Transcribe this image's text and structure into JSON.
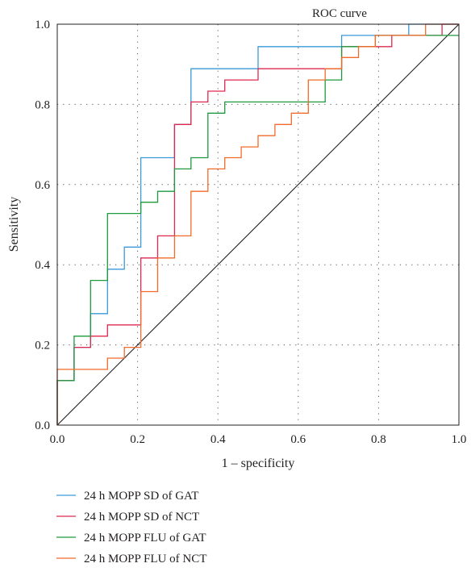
{
  "chart_data": {
    "type": "line",
    "title": "ROC curve",
    "xlabel": "1 – specificity",
    "ylabel": "Sensitivity",
    "xlim": [
      0,
      1
    ],
    "ylim": [
      0,
      1
    ],
    "x_ticks": [
      "0.0",
      "0.2",
      "0.4",
      "0.6",
      "0.8",
      "1.0"
    ],
    "y_ticks": [
      "0.0",
      "0.2",
      "0.4",
      "0.6",
      "0.8",
      "1.0"
    ],
    "grid": true,
    "legend_position": "bottom",
    "reference_line": {
      "x": [
        0,
        1
      ],
      "y": [
        0,
        1
      ],
      "color": "#231f20"
    },
    "series": [
      {
        "name": "24 h MOPP SD of GAT",
        "color": "#3a9ad9",
        "x": [
          0,
          0,
          0.042,
          0.042,
          0.083,
          0.083,
          0.125,
          0.125,
          0.167,
          0.167,
          0.208,
          0.208,
          0.292,
          0.292,
          0.333,
          0.333,
          0.5,
          0.5,
          0.708,
          0.708,
          0.875,
          0.875,
          1
        ],
        "y": [
          0,
          0.111,
          0.111,
          0.194,
          0.194,
          0.278,
          0.278,
          0.389,
          0.389,
          0.444,
          0.444,
          0.667,
          0.667,
          0.75,
          0.75,
          0.889,
          0.889,
          0.944,
          0.944,
          0.972,
          0.972,
          1,
          1
        ]
      },
      {
        "name": "24 h MOPP SD of NCT",
        "color": "#e0284f",
        "x": [
          0,
          0,
          0.042,
          0.042,
          0.083,
          0.083,
          0.125,
          0.125,
          0.208,
          0.208,
          0.25,
          0.25,
          0.292,
          0.292,
          0.333,
          0.333,
          0.375,
          0.375,
          0.417,
          0.417,
          0.5,
          0.5,
          0.708,
          0.708,
          0.833,
          0.833,
          0.958,
          0.958,
          1
        ],
        "y": [
          0,
          0.111,
          0.111,
          0.194,
          0.194,
          0.222,
          0.222,
          0.25,
          0.25,
          0.417,
          0.417,
          0.472,
          0.472,
          0.75,
          0.75,
          0.806,
          0.806,
          0.833,
          0.833,
          0.861,
          0.861,
          0.889,
          0.889,
          0.944,
          0.944,
          0.972,
          0.972,
          1,
          1
        ]
      },
      {
        "name": "24 h MOPP FLU of GAT",
        "color": "#1f9a3e",
        "x": [
          0,
          0,
          0.042,
          0.042,
          0.083,
          0.083,
          0.125,
          0.125,
          0.208,
          0.208,
          0.25,
          0.25,
          0.292,
          0.292,
          0.333,
          0.333,
          0.375,
          0.375,
          0.417,
          0.417,
          0.667,
          0.667,
          0.708,
          0.708,
          0.792,
          0.792,
          1
        ],
        "y": [
          0,
          0.111,
          0.111,
          0.222,
          0.222,
          0.361,
          0.361,
          0.528,
          0.528,
          0.556,
          0.556,
          0.583,
          0.583,
          0.639,
          0.639,
          0.667,
          0.667,
          0.778,
          0.778,
          0.806,
          0.806,
          0.861,
          0.861,
          0.944,
          0.944,
          0.972,
          0.972
        ]
      },
      {
        "name": "24 h MOPP FLU of NCT",
        "color": "#f26b2a",
        "x": [
          0,
          0,
          0.125,
          0.125,
          0.167,
          0.167,
          0.208,
          0.208,
          0.25,
          0.25,
          0.292,
          0.292,
          0.333,
          0.333,
          0.375,
          0.375,
          0.417,
          0.417,
          0.458,
          0.458,
          0.5,
          0.5,
          0.542,
          0.542,
          0.583,
          0.583,
          0.625,
          0.625,
          0.667,
          0.667,
          0.708,
          0.708,
          0.75,
          0.75,
          0.792,
          0.792,
          0.917,
          0.917,
          1
        ],
        "y": [
          0,
          0.139,
          0.139,
          0.167,
          0.167,
          0.194,
          0.194,
          0.333,
          0.333,
          0.417,
          0.417,
          0.472,
          0.472,
          0.583,
          0.583,
          0.639,
          0.639,
          0.667,
          0.667,
          0.694,
          0.694,
          0.722,
          0.722,
          0.75,
          0.75,
          0.778,
          0.778,
          0.861,
          0.861,
          0.889,
          0.889,
          0.917,
          0.917,
          0.944,
          0.944,
          0.972,
          0.972,
          1,
          1
        ]
      }
    ]
  }
}
